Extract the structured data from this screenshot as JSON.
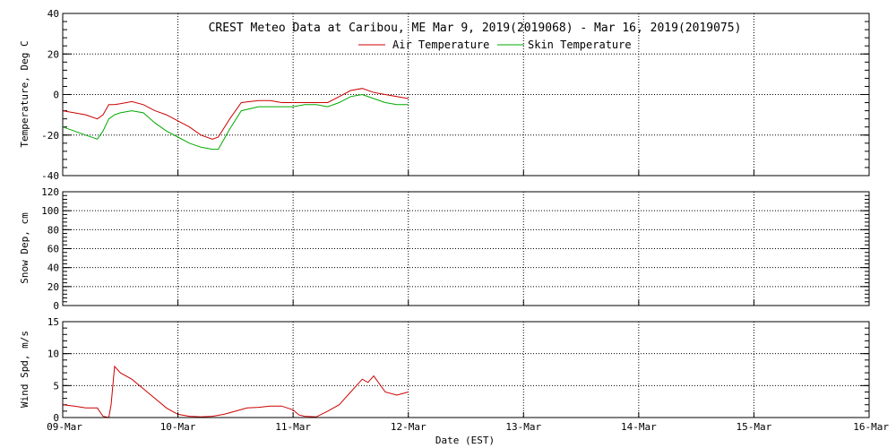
{
  "title": "CREST Meteo Data at Caribou, ME   Mar  9, 2019(2019068) - Mar 16, 2019(2019075)",
  "xlabel": "Date (EST)",
  "x_ticks": [
    "09-Mar",
    "10-Mar",
    "11-Mar",
    "12-Mar",
    "13-Mar",
    "14-Mar",
    "15-Mar",
    "16-Mar"
  ],
  "colors": {
    "air": "#cc0000",
    "skin": "#00aa00",
    "wind": "#cc0000"
  },
  "chart_data": [
    {
      "type": "line",
      "ylabel": "Temperature, Deg C",
      "xlim": [
        0,
        7
      ],
      "ylim": [
        -40,
        40
      ],
      "yticks": [
        -40,
        -20,
        0,
        20,
        40
      ],
      "grid": true,
      "legend_position": "top-center",
      "series": [
        {
          "name": "Air Temperature",
          "x": [
            0,
            0.1,
            0.2,
            0.3,
            0.35,
            0.4,
            0.45,
            0.5,
            0.6,
            0.7,
            0.8,
            0.9,
            1.0,
            1.1,
            1.2,
            1.3,
            1.35,
            1.45,
            1.55,
            1.7,
            1.8,
            1.9,
            2.0,
            2.1,
            2.2,
            2.3,
            2.4,
            2.5,
            2.6,
            2.7,
            2.8,
            2.9,
            3.0
          ],
          "y": [
            -8,
            -9,
            -10,
            -12,
            -10,
            -5,
            -5,
            -4.5,
            -3.5,
            -5,
            -8,
            -10,
            -13,
            -16,
            -20,
            -22,
            -21,
            -12,
            -4,
            -3,
            -3,
            -4,
            -4,
            -4,
            -4,
            -4,
            -1,
            2,
            3,
            1,
            0,
            -1,
            -2
          ]
        },
        {
          "name": "Skin Temperature",
          "x": [
            0,
            0.1,
            0.2,
            0.3,
            0.35,
            0.4,
            0.45,
            0.5,
            0.6,
            0.7,
            0.8,
            0.9,
            1.0,
            1.1,
            1.2,
            1.3,
            1.35,
            1.45,
            1.55,
            1.7,
            1.8,
            1.9,
            2.0,
            2.1,
            2.2,
            2.3,
            2.4,
            2.5,
            2.6,
            2.7,
            2.8,
            2.9,
            3.0
          ],
          "y": [
            -16,
            -18,
            -20,
            -22,
            -18,
            -12,
            -10,
            -9,
            -8,
            -9,
            -14,
            -18,
            -21,
            -24,
            -26,
            -27,
            -27,
            -17,
            -8,
            -6,
            -6,
            -6,
            -6,
            -5,
            -5,
            -6,
            -4,
            -1,
            0,
            -2,
            -4,
            -5,
            -5
          ]
        }
      ]
    },
    {
      "type": "line",
      "ylabel": "Snow Dep, cm",
      "xlim": [
        0,
        7
      ],
      "ylim": [
        0,
        120
      ],
      "yticks": [
        0,
        20,
        40,
        60,
        80,
        100,
        120
      ],
      "grid": true,
      "series": []
    },
    {
      "type": "line",
      "ylabel": "Wind Spd, m/s",
      "xlim": [
        0,
        7
      ],
      "ylim": [
        0,
        15
      ],
      "yticks": [
        0,
        5,
        10,
        15
      ],
      "grid": true,
      "series": [
        {
          "x": [
            0,
            0.1,
            0.2,
            0.3,
            0.35,
            0.4,
            0.42,
            0.45,
            0.5,
            0.6,
            0.7,
            0.8,
            0.9,
            0.95,
            1.0,
            1.1,
            1.2,
            1.3,
            1.4,
            1.5,
            1.6,
            1.7,
            1.8,
            1.9,
            2.0,
            2.05,
            2.1,
            2.2,
            2.3,
            2.4,
            2.45,
            2.5,
            2.55,
            2.6,
            2.65,
            2.7,
            2.8,
            2.9,
            3.0
          ],
          "y": [
            2,
            1.8,
            1.5,
            1.5,
            0.2,
            0,
            2,
            8,
            7,
            6,
            4.5,
            3,
            1.5,
            1,
            0.5,
            0.2,
            0.1,
            0.2,
            0.5,
            1,
            1.5,
            1.6,
            1.8,
            1.8,
            1.2,
            0.4,
            0.2,
            0.1,
            1,
            2,
            3,
            4,
            5,
            6,
            5.5,
            6.5,
            4,
            3.5,
            4
          ]
        }
      ]
    }
  ]
}
